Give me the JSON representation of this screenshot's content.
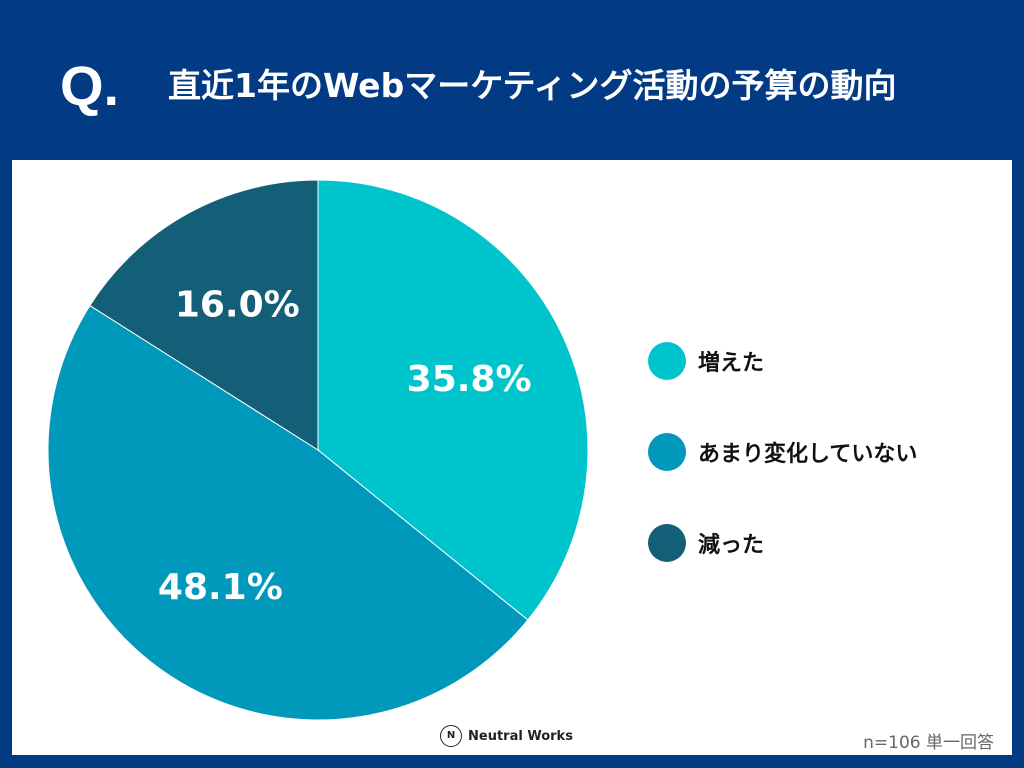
{
  "header": {
    "q_mark": "Q.",
    "title": "直近1年のWebマーケティング活動の予算の動向"
  },
  "chart_data": {
    "type": "pie",
    "title": "直近1年のWebマーケティング活動の予算の動向",
    "slices": [
      {
        "label": "増えた",
        "value": 35.8,
        "display": "35.8%",
        "color": "#00c4cc"
      },
      {
        "label": "あまり変化していない",
        "value": 48.1,
        "display": "48.1%",
        "color": "#0099bb"
      },
      {
        "label": "減った",
        "value": 16.0,
        "display": "16.0%",
        "color": "#135f78"
      }
    ],
    "legend_position": "right"
  },
  "footer": {
    "logo_text": "Neutral Works",
    "note": "n=106 単一回答"
  }
}
